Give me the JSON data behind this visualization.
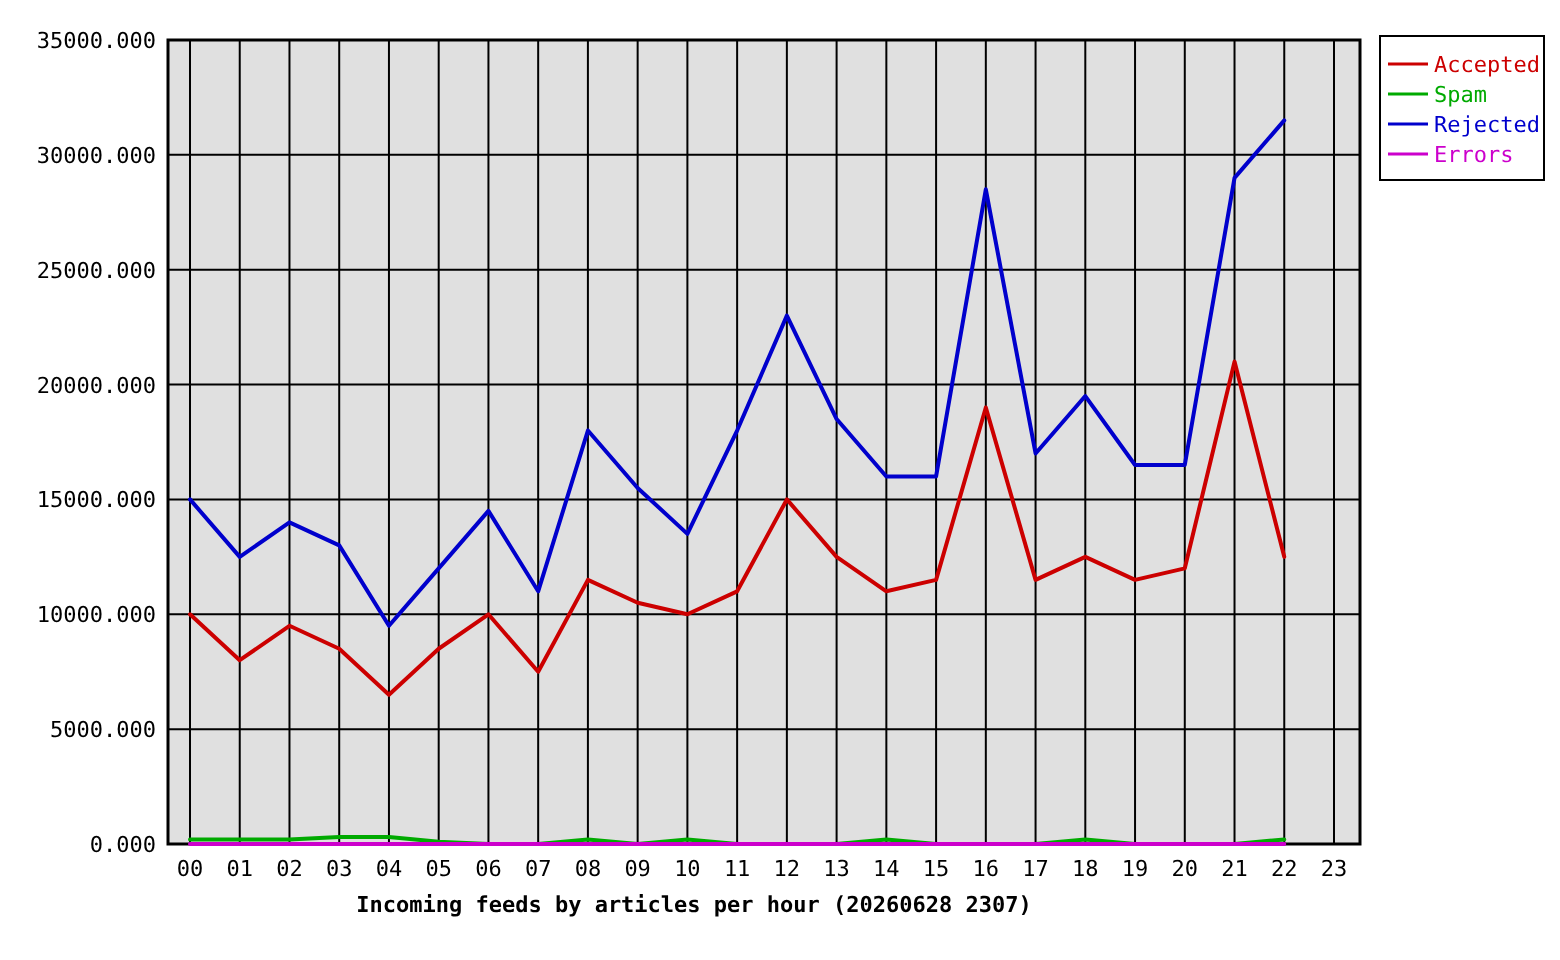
{
  "chart_data": {
    "type": "line",
    "xlabel": "Incoming feeds by articles per hour (20260628 2307)",
    "categories": [
      "00",
      "01",
      "02",
      "03",
      "04",
      "05",
      "06",
      "07",
      "08",
      "09",
      "10",
      "11",
      "12",
      "13",
      "14",
      "15",
      "16",
      "17",
      "18",
      "19",
      "20",
      "21",
      "22",
      "23"
    ],
    "series": [
      {
        "name": "Accepted",
        "color": "#cc0000",
        "values": [
          10000,
          8000,
          9500,
          8500,
          6500,
          8500,
          10000,
          7500,
          11500,
          10500,
          10000,
          11000,
          15000,
          12500,
          11000,
          11500,
          19000,
          11500,
          12500,
          11500,
          12000,
          21000,
          12500,
          null
        ]
      },
      {
        "name": "Spam",
        "color": "#00aa00",
        "values": [
          200,
          200,
          200,
          300,
          300,
          100,
          0,
          0,
          200,
          0,
          200,
          0,
          null,
          0,
          200,
          0,
          null,
          0,
          200,
          0,
          null,
          0,
          200,
          null
        ]
      },
      {
        "name": "Rejected",
        "color": "#0000cc",
        "values": [
          15000,
          12500,
          14000,
          13000,
          9500,
          12000,
          14500,
          11000,
          18000,
          15500,
          13500,
          18000,
          23000,
          18500,
          16000,
          16000,
          28500,
          17000,
          19500,
          16500,
          16500,
          29000,
          31500,
          null
        ]
      },
      {
        "name": "Errors",
        "color": "#cc00cc",
        "values": [
          0,
          0,
          0,
          0,
          0,
          0,
          0,
          0,
          0,
          0,
          0,
          0,
          0,
          0,
          0,
          0,
          0,
          0,
          0,
          0,
          0,
          0,
          0,
          null
        ]
      }
    ],
    "ylim": [
      0,
      35000
    ],
    "yticks": [
      {
        "value": 0,
        "label": "0.000"
      },
      {
        "value": 5000,
        "label": "5000.000"
      },
      {
        "value": 10000,
        "label": "10000.000"
      },
      {
        "value": 15000,
        "label": "15000.000"
      },
      {
        "value": 20000,
        "label": "20000.000"
      },
      {
        "value": 25000,
        "label": "25000.000"
      },
      {
        "value": 30000,
        "label": "30000.000"
      },
      {
        "value": 35000,
        "label": "35000.000"
      }
    ],
    "grid": true,
    "legend": "top right",
    "marker": "none",
    "line_style": "solid"
  }
}
